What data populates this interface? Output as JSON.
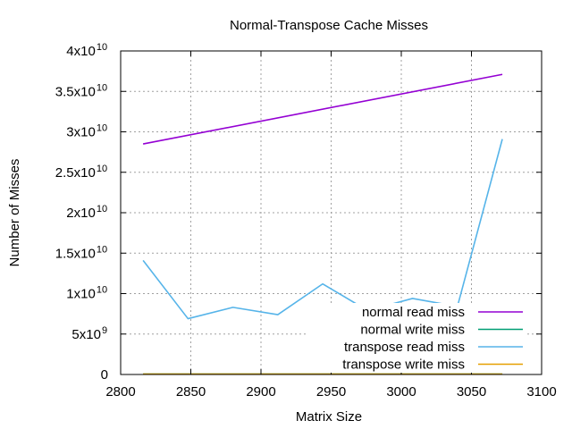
{
  "chart_data": {
    "type": "line",
    "title": "Normal-Transpose Cache Misses",
    "xlabel": "Matrix Size",
    "ylabel": "Number of Misses",
    "xlim": [
      2800,
      3100
    ],
    "ylim": [
      0,
      40000000000
    ],
    "grid": true,
    "legend_position": "bottom-right",
    "x_ticks": [
      {
        "value": 2800,
        "label": "2800"
      },
      {
        "value": 2850,
        "label": "2850"
      },
      {
        "value": 2900,
        "label": "2900"
      },
      {
        "value": 2950,
        "label": "2950"
      },
      {
        "value": 3000,
        "label": "3000"
      },
      {
        "value": 3050,
        "label": "3050"
      },
      {
        "value": 3100,
        "label": "3100"
      }
    ],
    "y_ticks": [
      {
        "value": 0,
        "mantissa": "0",
        "exp": ""
      },
      {
        "value": 5000000000,
        "mantissa": "5x10",
        "exp": "9"
      },
      {
        "value": 10000000000,
        "mantissa": "1x10",
        "exp": "10"
      },
      {
        "value": 15000000000,
        "mantissa": "1.5x10",
        "exp": "10"
      },
      {
        "value": 20000000000,
        "mantissa": "2x10",
        "exp": "10"
      },
      {
        "value": 25000000000,
        "mantissa": "2.5x10",
        "exp": "10"
      },
      {
        "value": 30000000000,
        "mantissa": "3x10",
        "exp": "10"
      },
      {
        "value": 35000000000,
        "mantissa": "3.5x10",
        "exp": "10"
      },
      {
        "value": 40000000000,
        "mantissa": "4x10",
        "exp": "10"
      }
    ],
    "series": [
      {
        "name": "normal read miss",
        "color": "#9400d3",
        "x": [
          2816,
          3072
        ],
        "y": [
          28500000000,
          37100000000
        ]
      },
      {
        "name": "normal write miss",
        "color": "#009e73",
        "x": [
          2816,
          3072
        ],
        "y": [
          50000000,
          50000000
        ]
      },
      {
        "name": "transpose read miss",
        "color": "#56b4e9",
        "x": [
          2816,
          2848,
          2880,
          2912,
          2944,
          2976,
          3008,
          3040,
          3072
        ],
        "y": [
          14100000000,
          6900000000,
          8300000000,
          7400000000,
          11200000000,
          7900000000,
          9400000000,
          8400000000,
          29100000000
        ]
      },
      {
        "name": "transpose write miss",
        "color": "#e69f00",
        "x": [
          2816,
          3072
        ],
        "y": [
          50000000,
          50000000
        ]
      }
    ]
  }
}
